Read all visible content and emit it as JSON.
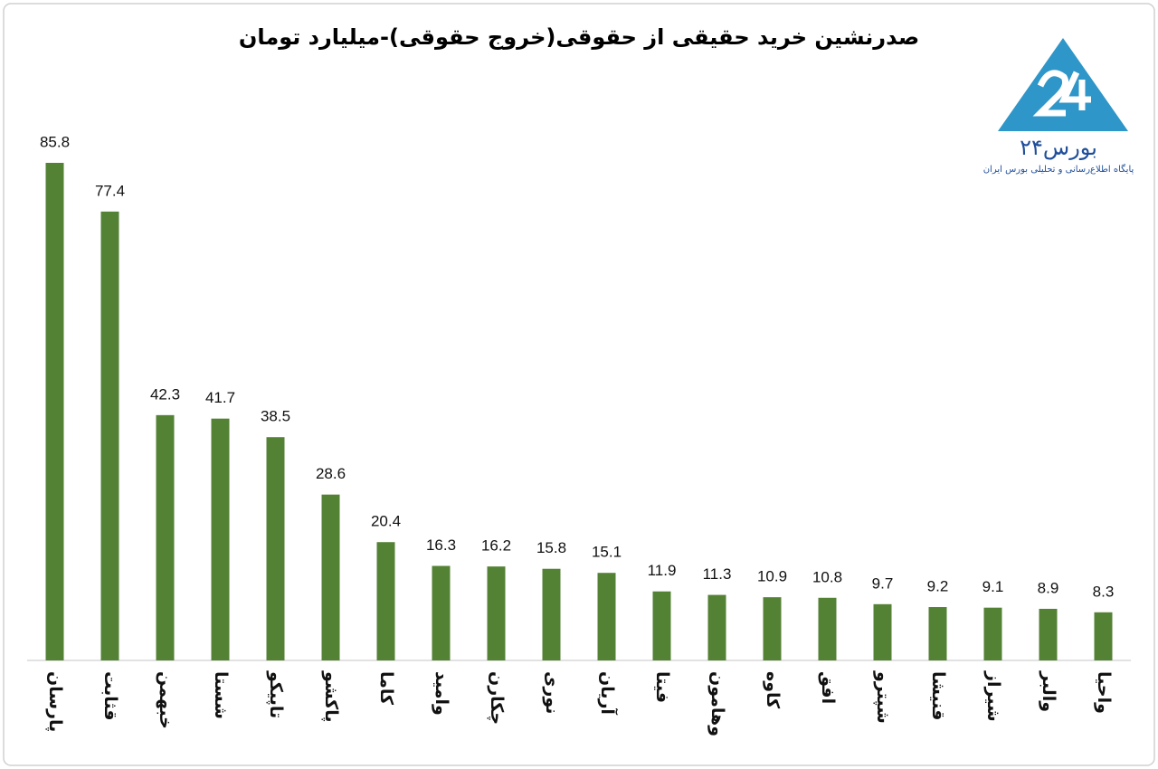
{
  "chart_data": {
    "type": "bar",
    "title": "صدرنشین خرید حقیقی از حقوقی(خروج حقوقی)-میلیارد تومان",
    "categories": [
      "پارسان",
      "قثابت",
      "خبهمن",
      "شستا",
      "تاپیکو",
      "پاکشو",
      "کاما",
      "وامید",
      "چکارن",
      "نوری",
      "آریان",
      "فیتا",
      "وهامون",
      "کاوه",
      "افق",
      "شپترو",
      "قنیشا",
      "شیراز",
      "والبر",
      "واحیا"
    ],
    "values": [
      85.8,
      77.4,
      42.3,
      41.7,
      38.5,
      28.6,
      20.4,
      16.3,
      16.2,
      15.8,
      15.1,
      11.9,
      11.3,
      10.9,
      10.8,
      9.7,
      9.2,
      9.1,
      8.9,
      8.3
    ],
    "color": "#548235"
  },
  "logo": {
    "name": "بورس۲۴",
    "tagline": "پایگاه اطلاع‌رسانی و تحلیلی بورس ایران"
  }
}
